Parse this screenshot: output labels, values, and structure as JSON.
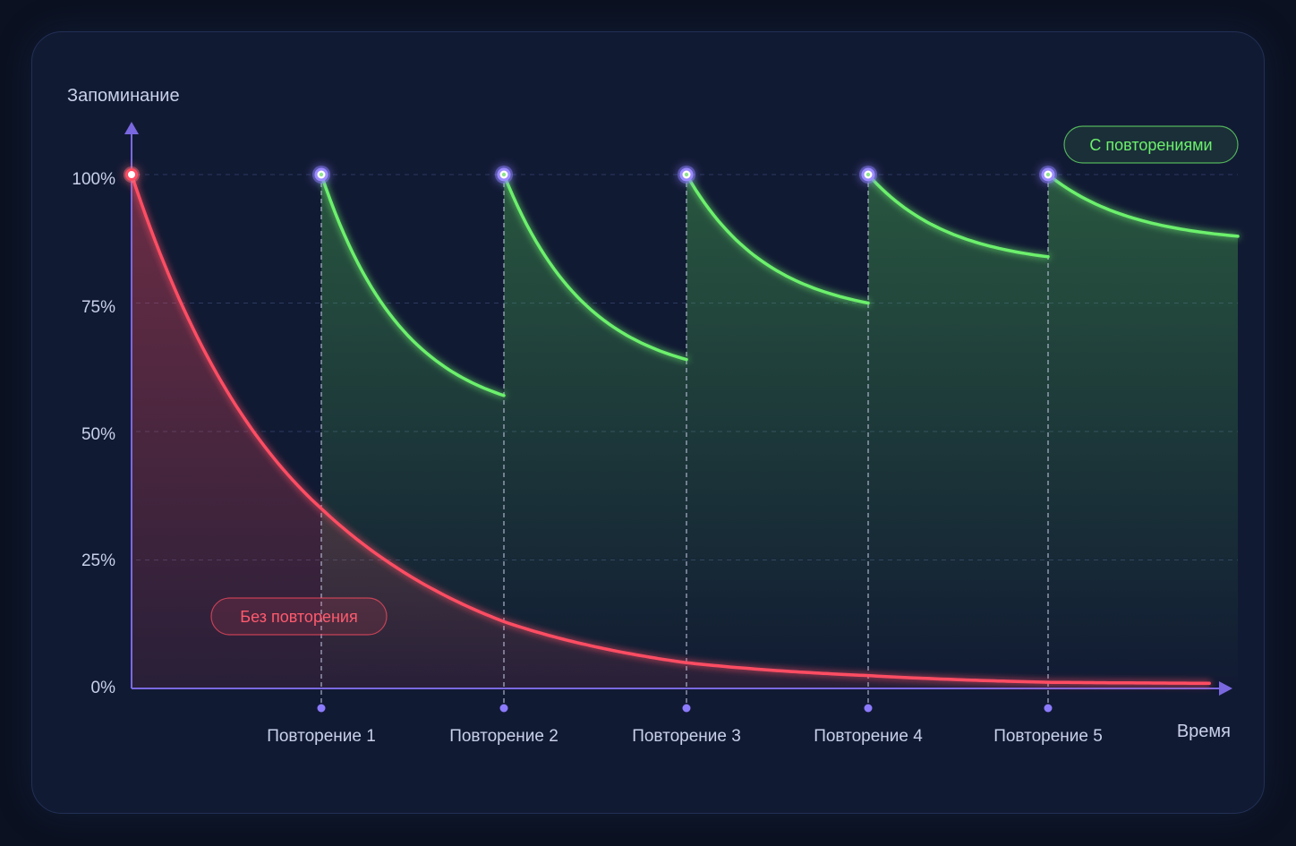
{
  "chart_data": {
    "type": "line",
    "ylabel": "Запоминание",
    "xlabel": "Время",
    "ylim": [
      0,
      100
    ],
    "y_ticks": [
      "0%",
      "25%",
      "50%",
      "75%",
      "100%"
    ],
    "y_tick_values": [
      0,
      25,
      50,
      75,
      100
    ],
    "review_labels": [
      "Повторение 1",
      "Повторение 2",
      "Повторение 3",
      "Повторение 4",
      "Повторение 5"
    ],
    "series": [
      {
        "name": "Без повторения",
        "color": "#ff4d63",
        "points": [
          [
            0,
            100
          ],
          [
            1,
            35
          ],
          [
            2,
            13
          ],
          [
            3,
            5
          ],
          [
            4,
            2.5
          ],
          [
            5,
            1.2
          ],
          [
            5.85,
            1
          ]
        ]
      },
      {
        "name": "С повторениями",
        "color": "#6cf06c",
        "segments": [
          {
            "start": [
              1,
              100
            ],
            "end": [
              2,
              57
            ]
          },
          {
            "start": [
              2,
              100
            ],
            "end": [
              3,
              64
            ]
          },
          {
            "start": [
              3,
              100
            ],
            "end": [
              4,
              75
            ]
          },
          {
            "start": [
              4,
              100
            ],
            "end": [
              5,
              84
            ]
          },
          {
            "start": [
              5,
              100
            ],
            "end": [
              6,
              88
            ]
          }
        ]
      }
    ],
    "grid": true
  },
  "colors": {
    "axis": "#7a68e0",
    "forget": "#ff4d63",
    "review": "#6cf06c",
    "marker": "#8c7bff",
    "text": "#c9d1ea"
  }
}
